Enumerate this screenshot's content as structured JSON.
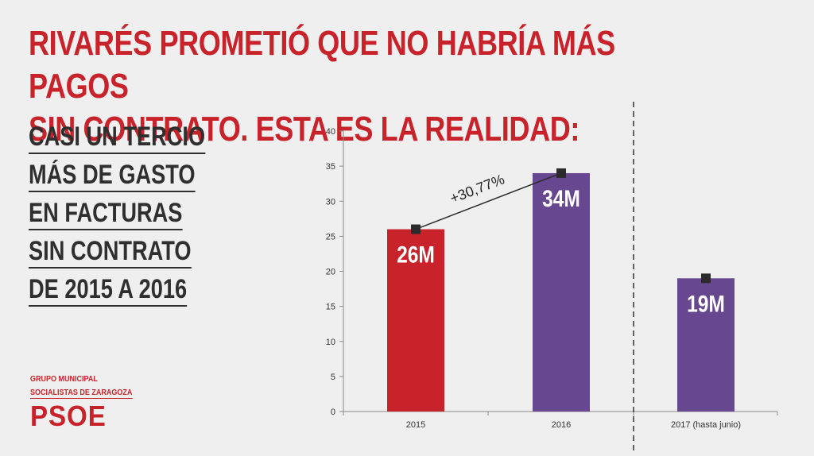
{
  "headline": {
    "line1": "RIVARÉS PROMETIÓ QUE NO HABRÍA MÁS PAGOS",
    "line2": "SIN CONTRATO. ESTA ES LA REALIDAD:"
  },
  "subheading": {
    "lines": [
      "CASI UN TERCIO",
      "MÁS DE GASTO",
      "EN FACTURAS",
      "SIN CONTRATO",
      "DE 2015 A 2016"
    ]
  },
  "logo": {
    "line1": "GRUPO MUNICIPAL",
    "line2": "SOCIALISTAS DE ZARAGOZA",
    "brand": "PSOE"
  },
  "colors": {
    "accent": "#c8222a",
    "bar_2015": "#c8222a",
    "bar_purple": "#664790",
    "marker": "#2b2b2b"
  },
  "chart_data": {
    "type": "bar",
    "categories": [
      "2015",
      "2016",
      "2017 (hasta junio)"
    ],
    "values": [
      26,
      34,
      19
    ],
    "data_labels": [
      "26M",
      "34M",
      "19M"
    ],
    "ylim": [
      0,
      40
    ],
    "yticks": [
      0,
      5,
      10,
      15,
      20,
      25,
      30,
      35,
      40
    ],
    "grid": false,
    "legend": "none",
    "annotation": {
      "text": "+30,77%",
      "from_category": "2015",
      "to_category": "2016"
    },
    "separator_between": [
      "2016",
      "2017 (hasta junio)"
    ]
  }
}
